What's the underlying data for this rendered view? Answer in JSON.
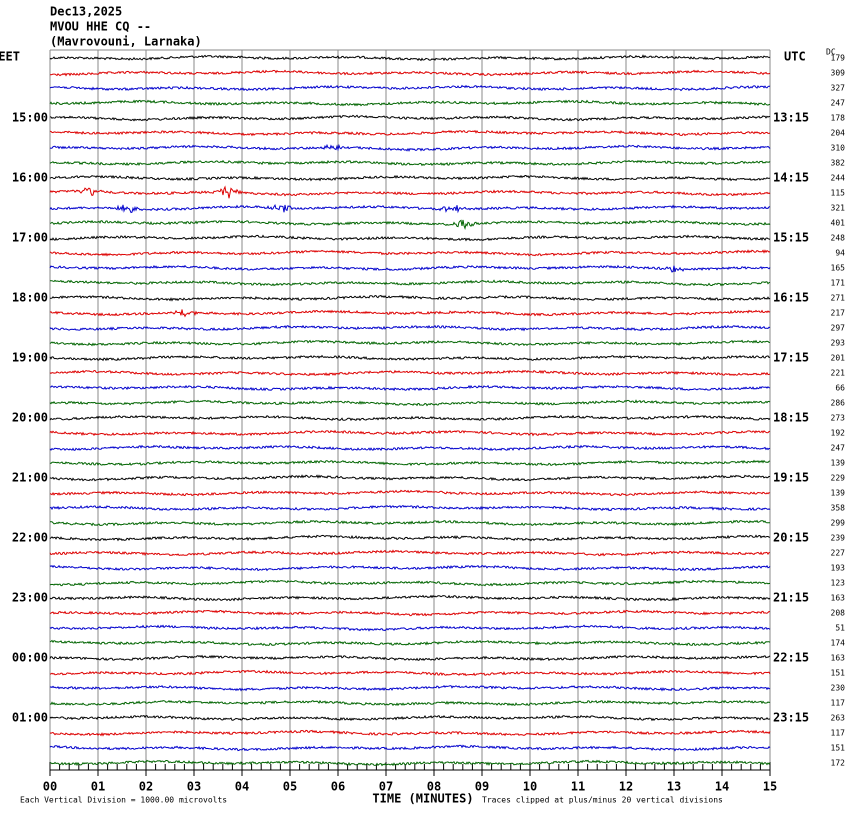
{
  "header": {
    "lines": [
      "Dec13,2025",
      "MVOU HHE CQ --",
      "(Mavrovouni, Larnaka)"
    ]
  },
  "left_axis": {
    "title": "EET",
    "labels": [
      "15:00",
      "16:00",
      "17:00",
      "18:00",
      "19:00",
      "20:00",
      "21:00",
      "22:00",
      "23:00",
      "00:00",
      "01:00"
    ]
  },
  "right_axis": {
    "title": "UTC",
    "labels": [
      "13:15",
      "14:15",
      "15:15",
      "16:15",
      "17:15",
      "18:15",
      "19:15",
      "20:15",
      "21:15",
      "22:15",
      "23:15"
    ]
  },
  "dc": {
    "title": "DC",
    "values": [
      "179",
      "309",
      "327",
      "247",
      "178",
      "204",
      "310",
      "382",
      "244",
      "115",
      "321",
      "401",
      "248",
      "94",
      "165",
      "171",
      "271",
      "217",
      "297",
      "293",
      "201",
      "221",
      "66",
      "286",
      "273",
      "192",
      "247",
      "139",
      "229",
      "139",
      "358",
      "299",
      "239",
      "227",
      "193",
      "123",
      "163",
      "208",
      "51",
      "174",
      "163",
      "151",
      "230",
      "117",
      "263",
      "117",
      "151",
      "172"
    ]
  },
  "x_axis": {
    "title": "TIME (MINUTES)",
    "labels": [
      "00",
      "01",
      "02",
      "03",
      "04",
      "05",
      "06",
      "07",
      "08",
      "09",
      "10",
      "11",
      "12",
      "13",
      "14",
      "15"
    ]
  },
  "footer": {
    "left": "Each Vertical Division = 1000.00 microvolts",
    "right": "Traces clipped at plus/minus 20 vertical divisions"
  }
}
